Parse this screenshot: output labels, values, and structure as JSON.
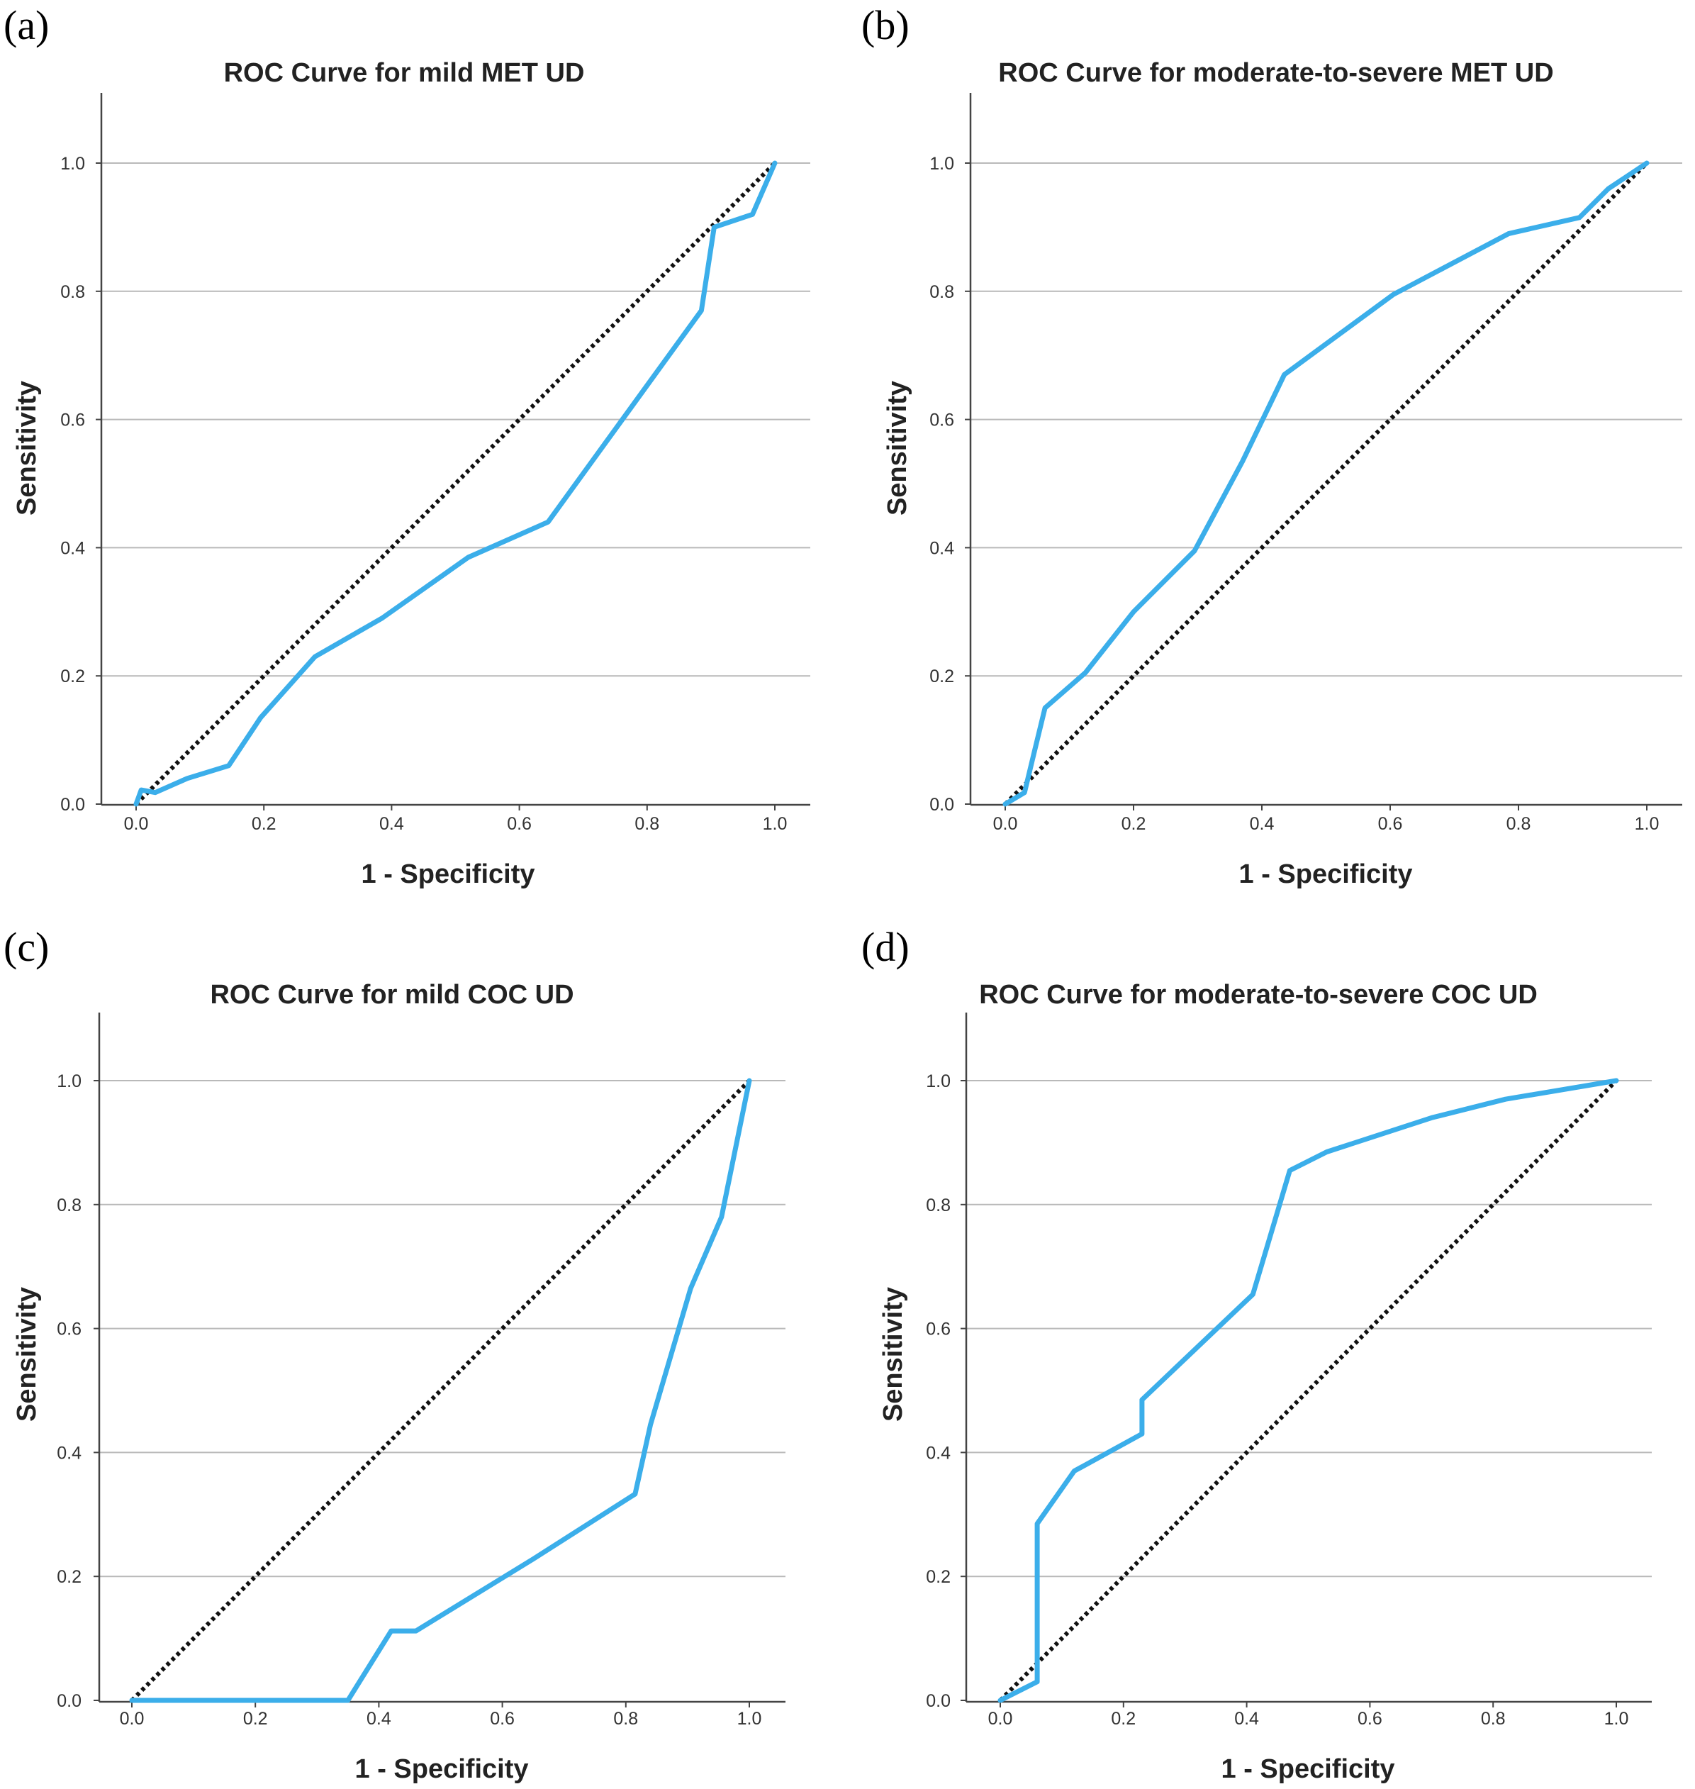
{
  "figure": {
    "colors": {
      "roc": "#3BAEEA",
      "reference": "#111111"
    }
  },
  "chart_data": [
    {
      "type": "line",
      "panel_label": "(a)",
      "title": "ROC Curve for mild MET UD",
      "xlabel": "1 - Specificity",
      "ylabel": "Sensitivity",
      "xlim": [
        0,
        1
      ],
      "ylim": [
        0,
        1.1
      ],
      "xticks": [
        "0.0",
        "0.2",
        "0.4",
        "0.6",
        "0.8",
        "1.0"
      ],
      "yticks": [
        "0.0",
        "0.2",
        "0.4",
        "0.6",
        "0.8",
        "1.0"
      ],
      "grid": true,
      "series": [
        {
          "name": "ROC",
          "x": [
            0,
            0.008,
            0.03,
            0.08,
            0.145,
            0.195,
            0.28,
            0.385,
            0.52,
            0.645,
            0.885,
            0.905,
            0.965,
            1.0
          ],
          "y": [
            0,
            0.022,
            0.018,
            0.04,
            0.06,
            0.135,
            0.23,
            0.29,
            0.385,
            0.44,
            0.77,
            0.9,
            0.92,
            1.0
          ]
        },
        {
          "name": "Reference Line",
          "x": [
            0,
            1
          ],
          "y": [
            0,
            1
          ]
        }
      ]
    },
    {
      "type": "line",
      "panel_label": "(b)",
      "title": "ROC Curve for moderate-to-severe MET UD",
      "xlabel": "1 - Specificity",
      "ylabel": "Sensitivity",
      "xlim": [
        0,
        1
      ],
      "ylim": [
        0,
        1.1
      ],
      "xticks": [
        "0.0",
        "0.2",
        "0.4",
        "0.6",
        "0.8",
        "1.0"
      ],
      "yticks": [
        "0.0",
        "0.2",
        "0.4",
        "0.6",
        "0.8",
        "1.0"
      ],
      "grid": true,
      "series": [
        {
          "name": "ROC",
          "x": [
            0,
            0.03,
            0.045,
            0.062,
            0.125,
            0.2,
            0.295,
            0.37,
            0.435,
            0.605,
            0.785,
            0.895,
            0.94,
            1.0
          ],
          "y": [
            0,
            0.018,
            0.08,
            0.15,
            0.205,
            0.3,
            0.395,
            0.535,
            0.67,
            0.795,
            0.89,
            0.915,
            0.96,
            1.0
          ]
        },
        {
          "name": "Reference Line",
          "x": [
            0,
            1
          ],
          "y": [
            0,
            1
          ]
        }
      ]
    },
    {
      "type": "line",
      "panel_label": "(c)",
      "title": "ROC Curve for mild COC UD",
      "xlabel": "1 - Specificity",
      "ylabel": "Sensitivity",
      "xlim": [
        0,
        1
      ],
      "ylim": [
        0,
        1.1
      ],
      "xticks": [
        "0.0",
        "0.2",
        "0.4",
        "0.6",
        "0.8",
        "1.0"
      ],
      "yticks": [
        "0.0",
        "0.2",
        "0.4",
        "0.6",
        "0.8",
        "1.0"
      ],
      "grid": true,
      "series": [
        {
          "name": "ROC",
          "x": [
            0,
            0.35,
            0.42,
            0.46,
            0.65,
            0.815,
            0.84,
            0.905,
            0.955,
            1.0
          ],
          "y": [
            0,
            0,
            0.112,
            0.112,
            0.228,
            0.333,
            0.445,
            0.665,
            0.78,
            1.0
          ]
        },
        {
          "name": "Reference Line",
          "x": [
            0,
            1
          ],
          "y": [
            0,
            1
          ]
        }
      ]
    },
    {
      "type": "line",
      "panel_label": "(d)",
      "title": "ROC Curve for moderate-to-severe COC UD",
      "xlabel": "1 - Specificity",
      "ylabel": "Sensitivity",
      "xlim": [
        0,
        1
      ],
      "ylim": [
        0,
        1.1
      ],
      "xticks": [
        "0.0",
        "0.2",
        "0.4",
        "0.6",
        "0.8",
        "1.0"
      ],
      "yticks": [
        "0.0",
        "0.2",
        "0.4",
        "0.6",
        "0.8",
        "1.0"
      ],
      "grid": true,
      "series": [
        {
          "name": "ROC",
          "x": [
            0,
            0.06,
            0.06,
            0.12,
            0.23,
            0.23,
            0.41,
            0.47,
            0.53,
            0.7,
            0.82,
            1.0
          ],
          "y": [
            0,
            0.03,
            0.285,
            0.37,
            0.43,
            0.485,
            0.655,
            0.855,
            0.885,
            0.94,
            0.97,
            1.0
          ]
        },
        {
          "name": "Reference Line",
          "x": [
            0,
            1
          ],
          "y": [
            0,
            1
          ]
        }
      ]
    }
  ]
}
